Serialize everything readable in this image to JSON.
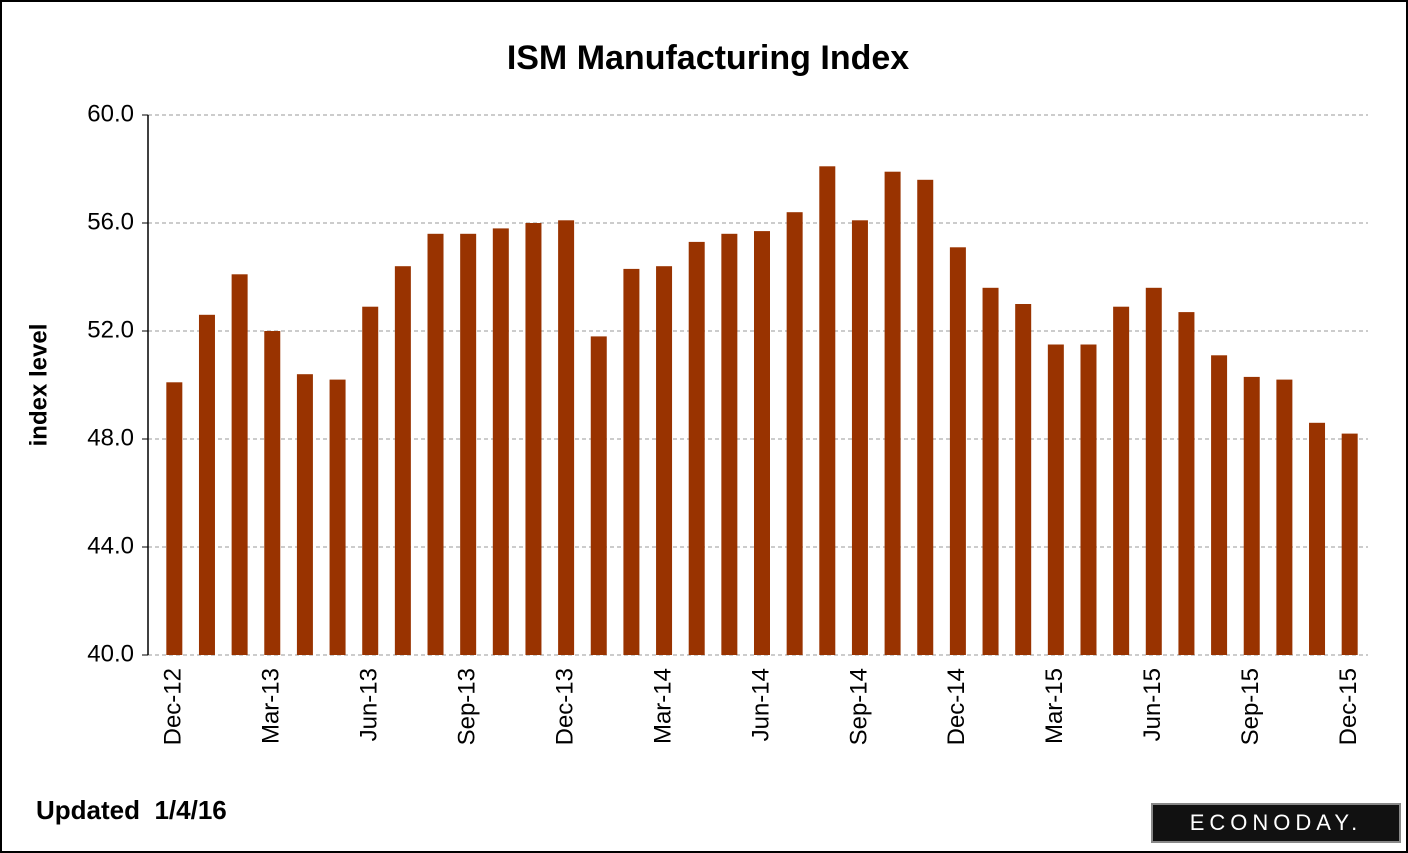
{
  "chart_data": {
    "type": "bar",
    "title": "ISM Manufacturing Index",
    "y_label": "index level",
    "categories": [
      "Dec-12",
      null,
      null,
      "Mar-13",
      null,
      null,
      "Jun-13",
      null,
      null,
      "Sep-13",
      null,
      null,
      "Dec-13",
      null,
      null,
      "Mar-14",
      null,
      null,
      "Jun-14",
      null,
      null,
      "Sep-14",
      null,
      null,
      "Dec-14",
      null,
      null,
      "Mar-15",
      null,
      null,
      "Jun-15",
      null,
      null,
      "Sep-15",
      null,
      null,
      "Dec-15"
    ],
    "values": [
      50.1,
      52.6,
      54.1,
      52.0,
      50.4,
      50.2,
      52.9,
      54.4,
      55.6,
      55.6,
      55.8,
      56.0,
      56.1,
      51.8,
      54.3,
      54.4,
      55.3,
      55.6,
      55.7,
      56.4,
      58.1,
      56.1,
      57.9,
      57.6,
      55.1,
      53.6,
      53.0,
      51.5,
      51.5,
      52.9,
      53.6,
      52.7,
      51.1,
      50.3,
      50.2,
      48.6,
      48.2
    ],
    "color": "#993300",
    "ylim": [
      40,
      60
    ],
    "yticks": [
      {
        "value": 40,
        "label": "40.0"
      },
      {
        "value": 44,
        "label": "44.0"
      },
      {
        "value": 48,
        "label": "48.0"
      },
      {
        "value": 52,
        "label": "52.0"
      },
      {
        "value": 56,
        "label": "56.0"
      },
      {
        "value": 60,
        "label": "60.0"
      }
    ],
    "grid": true,
    "footnote": "Updated  1/4/16",
    "logo": "ECONODAY."
  }
}
